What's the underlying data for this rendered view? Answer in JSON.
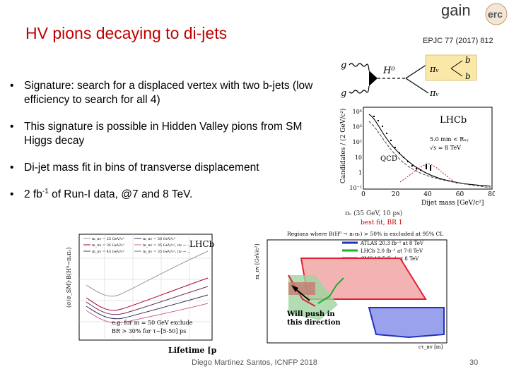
{
  "slide": {
    "title": "HV pions decaying to di-jets",
    "reference": "EPJC 77 (2017) 812",
    "logo": {
      "gain": "gain",
      "erc": "erc",
      "icon": "gain-erc-logo"
    },
    "bullets": [
      {
        "text": "Signature: search for a displaced vertex with two b-jets (low efficiency to search for all 4)"
      },
      {
        "text": "This signature is possible in Hidden Valley pions from SM Higgs decay"
      },
      {
        "text": "Di-jet mass fit in bins of transverse displacement"
      },
      {
        "pre": "2 fb",
        "sup": "-1",
        "post": " of Run-I data, @7 and 8 TeV."
      }
    ],
    "footer": "Diego Martinez Santos, ICNFP 2018",
    "page_number": "30"
  },
  "feynman": {
    "g_top": "g",
    "g_bottom": "g",
    "h0": "H⁰",
    "piv_top": "πᵥ",
    "piv_bottom": "πᵥ",
    "b_top": "b",
    "b_bottom": "b"
  },
  "mass_plot": {
    "experiment": "LHCb",
    "ylabel": "Candidates / (2 GeV/c²)",
    "xlabel": "Dijet mass [GeV/c²]",
    "legend_line1": "5.0 mm < Rₓᵧ",
    "legend_line2": "√s = 8 TeV",
    "qcd_label": "QCD",
    "yticks": [
      "10⁴",
      "10³",
      "10²",
      "10",
      "1",
      "10⁻¹"
    ],
    "xticks": [
      "0",
      "20",
      "40",
      "60",
      "80"
    ],
    "signal_caption": "πᵥ (35 GeV, 10 ps)",
    "best_fit": "best fit, BR 1"
  },
  "limit_plot": {
    "experiment": "LHCb",
    "xlabel": "Lifetime [ps]",
    "legend": [
      "m_πv = 25 GeV/c²",
      "m_πv = 35 GeV/c²",
      "m_πv = 45 GeV/c²",
      "m_πv = 50 GeV/c²",
      "m_πv = 35 GeV/c², πv → ...",
      "m_πv = 35 GeV/c², πv → ..."
    ],
    "note_line1": "e.g. for m = 50 GeV exclude",
    "note_line2": "BR > 30% for τ~[5-50] ps"
  },
  "region_plot": {
    "title": "Regions where B(H⁰ → πᵥπᵥ) > 50% is excluded at 95% CL",
    "ylabel": "m_πv [GeV/c²]",
    "xlabel": "cτ_πv [m]",
    "legend": [
      {
        "label": "ATLAS 20.3 fb⁻¹ at 8 TeV",
        "color": "#2233bb"
      },
      {
        "label": "LHCb 2.0 fb⁻¹ at 7-8 TeV",
        "color": "#22aa33"
      },
      {
        "label": "CMS 18.5 fb⁻¹ at 8 TeV",
        "color": "#dd2233"
      }
    ],
    "annotation_line1": "Will push in",
    "annotation_line2": "this direction"
  }
}
